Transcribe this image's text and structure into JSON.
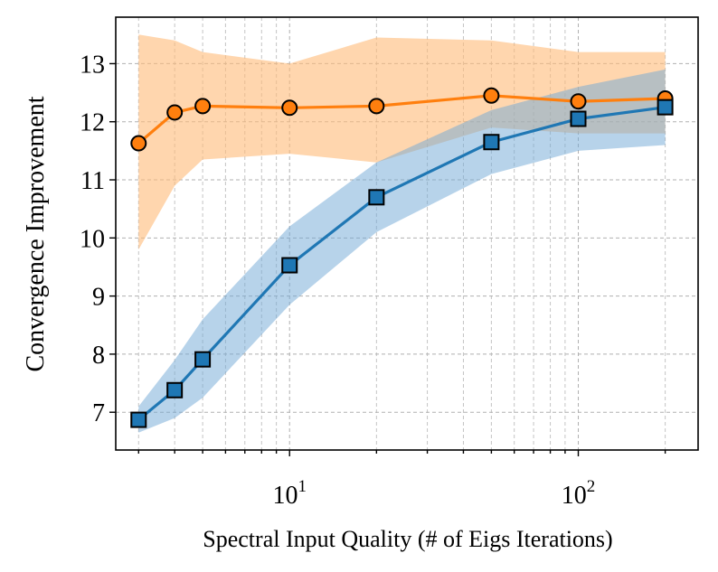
{
  "chart_data": {
    "type": "line",
    "xlabel": "Spectral Input Quality (# of Eigs Iterations)",
    "ylabel": "Convergence Improvement",
    "xscale": "log",
    "xlim": [
      2.5,
      260
    ],
    "ylim": [
      6.35,
      13.8
    ],
    "x_ticks": [
      {
        "value": 10,
        "base": "10",
        "exp": "1"
      },
      {
        "value": 100,
        "base": "10",
        "exp": "2"
      }
    ],
    "y_ticks": [
      7,
      8,
      9,
      10,
      11,
      12,
      13
    ],
    "grid": true,
    "minor_grid": true,
    "series": [
      {
        "color": "#ff7f0e",
        "band_color": "#ffbb78",
        "marker": "circle",
        "x": [
          3,
          4,
          5,
          10,
          20,
          50,
          100,
          200
        ],
        "y": [
          11.63,
          12.16,
          12.27,
          12.24,
          12.27,
          12.45,
          12.35,
          12.4
        ],
        "lower": [
          9.8,
          10.9,
          11.35,
          11.45,
          11.3,
          11.9,
          11.8,
          11.8
        ],
        "upper": [
          13.5,
          13.4,
          13.2,
          13.0,
          13.45,
          13.4,
          13.2,
          13.2
        ]
      },
      {
        "color": "#1f77b4",
        "band_color": "#6fa8d6",
        "marker": "square",
        "x": [
          3,
          4,
          5,
          10,
          20,
          50,
          100,
          200
        ],
        "y": [
          6.87,
          7.38,
          7.91,
          9.53,
          10.7,
          11.65,
          12.05,
          12.25
        ],
        "lower": [
          6.65,
          6.9,
          7.25,
          8.85,
          10.1,
          11.1,
          11.5,
          11.6
        ],
        "upper": [
          7.1,
          7.9,
          8.6,
          10.2,
          11.3,
          12.2,
          12.6,
          12.9
        ]
      }
    ]
  }
}
